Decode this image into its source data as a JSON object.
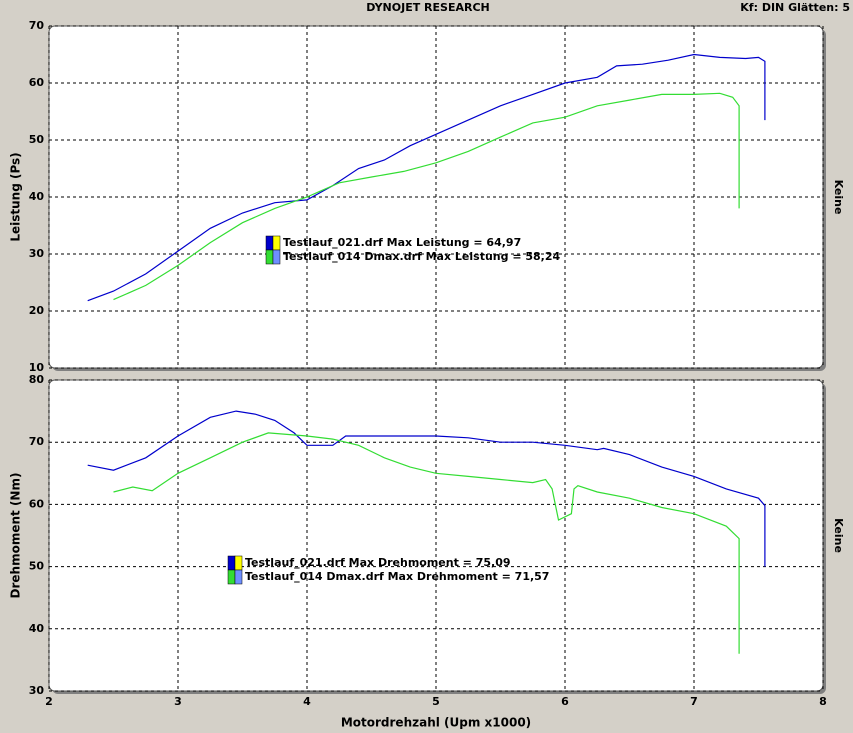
{
  "header": {
    "title": "DYNOJET RESEARCH",
    "info": "Kf: DIN  Glätten: 5"
  },
  "chart_data": [
    {
      "type": "line",
      "ylabel": "Leistung (Ps)",
      "side_label": "Keine",
      "xlim": [
        2,
        8
      ],
      "xticks": [
        2,
        3,
        4,
        5,
        6,
        7,
        8
      ],
      "ylim": [
        10,
        70
      ],
      "yticks": [
        10,
        20,
        30,
        40,
        50,
        60,
        70
      ],
      "grid": true,
      "series": [
        {
          "name": "Testlauf_021.drf Max Leistung = 64,97",
          "color": "#0000cc",
          "x": [
            2.3,
            2.5,
            2.75,
            3.0,
            3.25,
            3.5,
            3.75,
            4.0,
            4.2,
            4.4,
            4.6,
            4.8,
            5.0,
            5.25,
            5.5,
            5.75,
            6.0,
            6.25,
            6.4,
            6.6,
            6.8,
            7.0,
            7.2,
            7.4,
            7.5,
            7.55,
            7.55
          ],
          "values": [
            21.8,
            23.5,
            26.5,
            30.5,
            34.5,
            37.2,
            39,
            39.5,
            42,
            45,
            46.5,
            49,
            51,
            53.5,
            56,
            58,
            60,
            61,
            63,
            63.3,
            64,
            65,
            64.5,
            64.3,
            64.5,
            63.8,
            53.5
          ]
        },
        {
          "name": "Testlauf_014 Dmax.drf Max Leistung = 58,24",
          "color": "#33dd33",
          "x": [
            2.5,
            2.75,
            3.0,
            3.25,
            3.5,
            3.75,
            4.0,
            4.1,
            4.25,
            4.5,
            4.75,
            5.0,
            5.25,
            5.5,
            5.75,
            6.0,
            6.25,
            6.5,
            6.75,
            7.0,
            7.2,
            7.3,
            7.35,
            7.35
          ],
          "values": [
            22,
            24.5,
            28,
            32,
            35.5,
            38,
            40,
            41,
            42.5,
            43.5,
            44.5,
            46,
            48,
            50.5,
            53,
            54,
            56,
            57,
            58,
            58,
            58.2,
            57.5,
            56,
            38
          ]
        }
      ]
    },
    {
      "type": "line",
      "ylabel": "Drehmoment (Nm)",
      "side_label": "Keine",
      "xlabel": "Motordrehzahl (Upm x1000)",
      "xlim": [
        2,
        8
      ],
      "xticks": [
        2,
        3,
        4,
        5,
        6,
        7,
        8
      ],
      "ylim": [
        30,
        80
      ],
      "yticks": [
        30,
        40,
        50,
        60,
        70,
        80
      ],
      "grid": true,
      "series": [
        {
          "name": "Testlauf_021.drf Max Drehmoment = 75,09",
          "color": "#0000cc",
          "x": [
            2.3,
            2.5,
            2.75,
            3.0,
            3.25,
            3.45,
            3.6,
            3.75,
            3.9,
            4.0,
            4.2,
            4.3,
            4.5,
            4.75,
            5.0,
            5.25,
            5.5,
            5.75,
            6.0,
            6.25,
            6.3,
            6.5,
            6.75,
            7.0,
            7.25,
            7.5,
            7.55,
            7.55
          ],
          "values": [
            66.3,
            65.5,
            67.5,
            71,
            74,
            75,
            74.5,
            73.5,
            71.5,
            69.5,
            69.5,
            71,
            71,
            71,
            71,
            70.7,
            70,
            70,
            69.5,
            68.8,
            69,
            68,
            66,
            64.5,
            62.5,
            61,
            59.8,
            50
          ]
        },
        {
          "name": "Testlauf_014 Dmax.drf Max Drehmoment = 71,57",
          "color": "#33dd33",
          "x": [
            2.5,
            2.65,
            2.8,
            3.0,
            3.25,
            3.5,
            3.7,
            4.0,
            4.2,
            4.4,
            4.6,
            4.8,
            5.0,
            5.25,
            5.5,
            5.75,
            5.85,
            5.9,
            5.95,
            6.05,
            6.07,
            6.1,
            6.25,
            6.5,
            6.75,
            7.0,
            7.25,
            7.35,
            7.35
          ],
          "values": [
            62,
            62.8,
            62.2,
            65,
            67.5,
            70,
            71.5,
            71,
            70.5,
            69.5,
            67.5,
            66,
            65,
            64.5,
            64,
            63.5,
            64,
            62.5,
            57.5,
            58.5,
            62.5,
            63,
            62,
            61,
            59.5,
            58.5,
            56.5,
            54.5,
            36
          ]
        }
      ]
    }
  ]
}
